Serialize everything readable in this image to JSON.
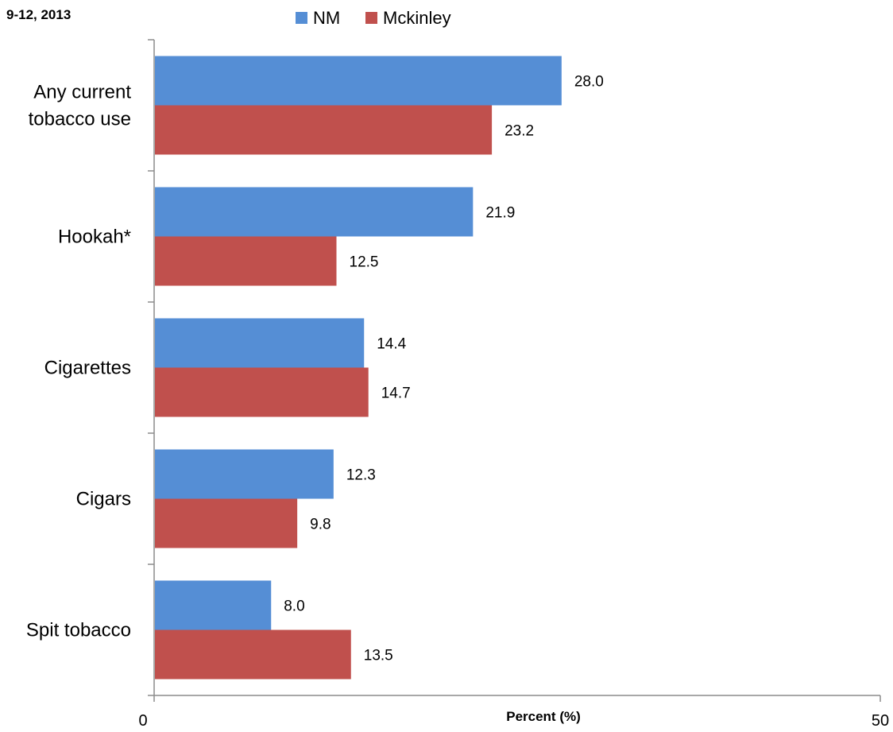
{
  "chart_data": {
    "type": "bar",
    "orientation": "horizontal",
    "title": "9-12, 2013",
    "categories": [
      "Any current tobacco use",
      "Hookah*",
      "Cigarettes",
      "Cigars",
      "Spit tobacco"
    ],
    "category_label_lines": [
      [
        "Any current",
        "tobacco use"
      ],
      [
        "Hookah*"
      ],
      [
        "Cigarettes"
      ],
      [
        "Cigars"
      ],
      [
        "Spit tobacco"
      ]
    ],
    "series": [
      {
        "name": "NM",
        "color": "#558ed5",
        "values": [
          28.0,
          21.9,
          14.4,
          12.3,
          8.0
        ],
        "labels": [
          "28.0",
          "21.9",
          "14.4",
          "12.3",
          "8.0"
        ]
      },
      {
        "name": "Mckinley",
        "color": "#c0504d",
        "values": [
          23.2,
          12.5,
          14.7,
          9.8,
          13.5
        ],
        "labels": [
          "23.2",
          "12.5",
          "14.7",
          "9.8",
          "13.5"
        ]
      }
    ],
    "xlabel": "Percent (%)",
    "ylabel": "",
    "xlim": [
      0,
      50
    ],
    "xtick_labels": [
      "0",
      "50"
    ],
    "grid": false,
    "legend_position": "top"
  }
}
